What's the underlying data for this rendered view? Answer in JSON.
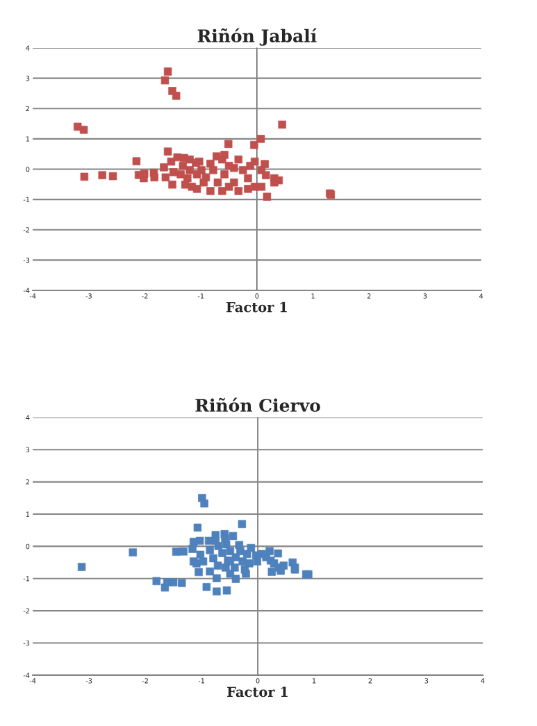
{
  "chart_data": [
    {
      "type": "scatter",
      "title": "Riñón Jabalí",
      "xlabel": "Factor 1",
      "xlim": [
        -4,
        4
      ],
      "ylim": [
        -4,
        4
      ],
      "xticks": [
        -4,
        -3,
        -2,
        -1,
        0,
        1,
        2,
        3,
        4
      ],
      "yticks": [
        -4,
        -3,
        -2,
        -1,
        0,
        1,
        2,
        3,
        4
      ],
      "grid": "y",
      "marker": "square",
      "series": [
        {
          "color": "#c0504d",
          "x": [
            -1.59,
            -1.64,
            -1.51,
            -1.44,
            -3.2,
            -3.09,
            0.45,
            0.07,
            -0.05,
            -0.51,
            -1.59,
            -2.15,
            -3.08,
            -2.76,
            -2.57,
            0.18,
            1.32,
            1.3,
            -2.11,
            -2.01,
            -1.84,
            -1.83,
            -2.02,
            -1.66,
            -1.63,
            -1.51,
            -1.53,
            -1.42,
            -1.3,
            -1.2,
            -1.03,
            -1.32,
            -1.2,
            -1.36,
            -1.49,
            -1.24,
            -1.16,
            -1.07,
            -0.99,
            -0.91,
            -0.83,
            -0.72,
            -0.58,
            -0.83,
            -0.62,
            -0.5,
            -0.58,
            -0.7,
            -0.41,
            -0.33,
            -0.33,
            -0.25,
            -0.16,
            -0.12,
            -0.04,
            -0.04,
            0.08,
            0.14,
            0.08,
            0.16,
            0.31,
            0.39,
            0.31,
            -0.78,
            -1.07,
            -0.41,
            -0.95,
            -0.62,
            -0.16,
            -1.28,
            -0.5,
            -1.09
          ],
          "values": [
            3.22,
            2.93,
            2.58,
            2.42,
            1.4,
            1.3,
            1.47,
            1.0,
            0.8,
            0.83,
            0.58,
            0.26,
            -0.25,
            -0.2,
            -0.23,
            -0.91,
            -0.84,
            -0.8,
            -0.19,
            -0.15,
            -0.12,
            -0.27,
            -0.3,
            0.06,
            -0.27,
            -0.51,
            0.25,
            0.39,
            0.37,
            0.32,
            0.25,
            0.11,
            -0.03,
            -0.17,
            -0.1,
            -0.3,
            -0.58,
            -0.65,
            -0.03,
            -0.27,
            0.18,
            0.42,
            0.47,
            -0.72,
            -0.72,
            0.11,
            -0.17,
            -0.44,
            -0.44,
            0.32,
            -0.72,
            -0.03,
            -0.3,
            0.11,
            0.25,
            -0.58,
            -0.03,
            0.17,
            -0.58,
            -0.2,
            -0.3,
            -0.37,
            -0.44,
            -0.03,
            -0.17,
            0.04,
            -0.44,
            0.32,
            -0.65,
            -0.51,
            -0.58,
            0.21
          ]
        }
      ]
    },
    {
      "type": "scatter",
      "title": "Riñón Ciervo",
      "xlabel": "Factor 1",
      "xlim": [
        -4,
        4
      ],
      "ylim": [
        -4,
        4
      ],
      "xticks": [
        -4,
        -3,
        -2,
        -1,
        0,
        1,
        2,
        3,
        4
      ],
      "yticks": [
        -4,
        -3,
        -2,
        -1,
        0,
        1,
        2,
        3,
        4
      ],
      "grid": "y",
      "marker": "square",
      "series": [
        {
          "color": "#4f81bd",
          "x": [
            -0.99,
            -0.95,
            -0.28,
            -1.07,
            -2.22,
            -3.13,
            -1.8,
            -1.65,
            -1.61,
            -1.5,
            -1.35,
            -0.91,
            -0.73,
            -0.55,
            -1.45,
            -1.32,
            -1.16,
            -1.14,
            -1.03,
            -1.14,
            -1.09,
            -1.05,
            -0.97,
            -1.02,
            -0.87,
            -0.75,
            -0.59,
            -0.44,
            -0.58,
            -0.75,
            -0.7,
            -0.85,
            -0.79,
            -0.85,
            -0.73,
            -0.71,
            -0.63,
            -0.56,
            -0.49,
            -0.53,
            -0.49,
            -0.39,
            -0.41,
            -0.39,
            -0.33,
            -0.31,
            -0.27,
            -0.23,
            -0.19,
            -0.12,
            -0.15,
            -0.03,
            -0.01,
            0.07,
            0.15,
            0.21,
            0.23,
            0.29,
            0.36,
            0.25,
            0.37,
            0.46,
            0.41,
            0.62,
            0.66,
            0.66,
            0.86,
            0.9,
            -0.57,
            -0.21,
            -0.49
          ],
          "values": [
            1.5,
            1.33,
            0.69,
            0.58,
            -0.19,
            -0.64,
            -1.08,
            -1.28,
            -1.11,
            -1.12,
            -1.14,
            -1.26,
            -1.4,
            -1.37,
            -0.17,
            -0.16,
            -0.08,
            0.14,
            0.17,
            -0.47,
            -0.53,
            -0.8,
            -0.47,
            -0.26,
            0.17,
            0.35,
            0.38,
            0.32,
            0.24,
            0.17,
            0.01,
            -0.12,
            -0.37,
            -0.78,
            -0.99,
            -0.6,
            -0.21,
            0.06,
            -0.15,
            -0.44,
            -0.85,
            -1.01,
            -0.66,
            -0.34,
            0.04,
            -0.15,
            -0.47,
            -0.72,
            -0.24,
            -0.05,
            -0.53,
            -0.28,
            -0.47,
            -0.24,
            -0.34,
            -0.15,
            -0.44,
            -0.53,
            -0.22,
            -0.79,
            -0.66,
            -0.6,
            -0.76,
            -0.5,
            -0.66,
            -0.72,
            -0.87,
            -0.87,
            -0.66,
            -0.85,
            -0.47
          ]
        }
      ]
    }
  ]
}
